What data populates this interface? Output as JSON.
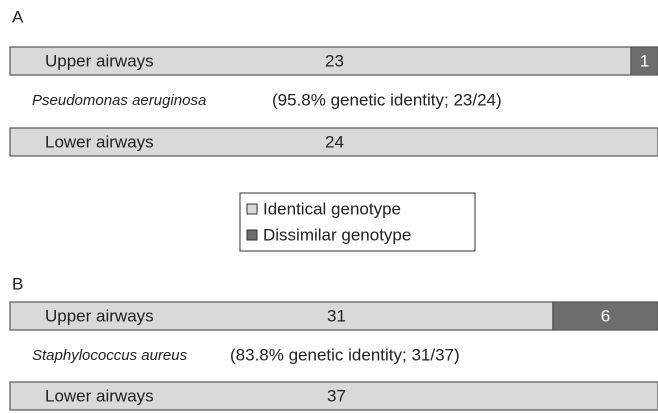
{
  "chart_data": [
    {
      "type": "bar",
      "title": "A",
      "categories": [
        "Upper airways",
        "Lower airways"
      ],
      "series": [
        {
          "name": "Identical genotype",
          "color": "#d9d9d9",
          "values": [
            23,
            24
          ]
        },
        {
          "name": "Dissimilar genotype",
          "color": "#6d6d6d",
          "values": [
            1,
            null
          ]
        }
      ],
      "organism": "Pseudomonas aeruginosa",
      "annotation": "(95.8% genetic identity; 23/24)",
      "xlim": [
        0,
        24
      ]
    },
    {
      "type": "bar",
      "title": "B",
      "categories": [
        "Upper airways",
        "Lower airways"
      ],
      "series": [
        {
          "color": "#d9d9d9",
          "values": [
            31,
            37
          ]
        },
        {
          "color": "#6d6d6d",
          "values": [
            6,
            null
          ]
        }
      ],
      "organism": "Staphylococcus aureus",
      "annotation": "(83.8% genetic identity; 31/37)",
      "xlim": [
        0,
        37
      ]
    }
  ]
}
